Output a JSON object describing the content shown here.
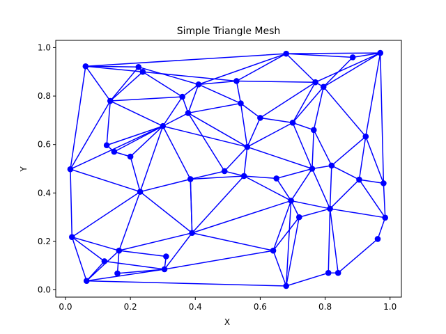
{
  "chart_data": {
    "type": "scatter",
    "title": "Simple Triangle Mesh",
    "xlabel": "X",
    "ylabel": "Y",
    "xlim": [
      -0.03,
      1.035
    ],
    "ylim": [
      -0.03,
      1.03
    ],
    "x_ticks": [
      "0.0",
      "0.2",
      "0.4",
      "0.6",
      "0.8",
      "1.0"
    ],
    "y_ticks": [
      "0.0",
      "0.2",
      "0.4",
      "0.6",
      "0.8",
      "1.0"
    ],
    "grid": false,
    "color": "#0000ff",
    "points": [
      [
        0.062,
        0.923
      ],
      [
        0.225,
        0.92
      ],
      [
        0.238,
        0.9
      ],
      [
        0.68,
        0.975
      ],
      [
        0.885,
        0.96
      ],
      [
        0.97,
        0.978
      ],
      [
        0.138,
        0.78
      ],
      [
        0.36,
        0.797
      ],
      [
        0.41,
        0.848
      ],
      [
        0.527,
        0.862
      ],
      [
        0.77,
        0.857
      ],
      [
        0.795,
        0.838
      ],
      [
        0.54,
        0.77
      ],
      [
        0.378,
        0.73
      ],
      [
        0.6,
        0.71
      ],
      [
        0.7,
        0.69
      ],
      [
        0.765,
        0.66
      ],
      [
        0.925,
        0.633
      ],
      [
        0.3,
        0.676
      ],
      [
        0.127,
        0.597
      ],
      [
        0.15,
        0.57
      ],
      [
        0.2,
        0.55
      ],
      [
        0.56,
        0.59
      ],
      [
        0.015,
        0.498
      ],
      [
        0.49,
        0.49
      ],
      [
        0.76,
        0.5
      ],
      [
        0.82,
        0.513
      ],
      [
        0.55,
        0.47
      ],
      [
        0.385,
        0.457
      ],
      [
        0.65,
        0.46
      ],
      [
        0.905,
        0.455
      ],
      [
        0.98,
        0.44
      ],
      [
        0.23,
        0.405
      ],
      [
        0.695,
        0.368
      ],
      [
        0.815,
        0.335
      ],
      [
        0.72,
        0.3
      ],
      [
        0.985,
        0.298
      ],
      [
        0.02,
        0.218
      ],
      [
        0.39,
        0.235
      ],
      [
        0.962,
        0.21
      ],
      [
        0.165,
        0.162
      ],
      [
        0.64,
        0.162
      ],
      [
        0.31,
        0.138
      ],
      [
        0.12,
        0.118
      ],
      [
        0.305,
        0.085
      ],
      [
        0.16,
        0.068
      ],
      [
        0.065,
        0.037
      ],
      [
        0.84,
        0.07
      ],
      [
        0.81,
        0.07
      ],
      [
        0.68,
        0.016
      ]
    ],
    "edges": [
      [
        0,
        1
      ],
      [
        1,
        2
      ],
      [
        0,
        2
      ],
      [
        0,
        3
      ],
      [
        3,
        4
      ],
      [
        3,
        5
      ],
      [
        4,
        5
      ],
      [
        0,
        6
      ],
      [
        1,
        6
      ],
      [
        2,
        6
      ],
      [
        6,
        7
      ],
      [
        2,
        7
      ],
      [
        1,
        8
      ],
      [
        7,
        8
      ],
      [
        2,
        9
      ],
      [
        8,
        9
      ],
      [
        9,
        3
      ],
      [
        3,
        8
      ],
      [
        3,
        10
      ],
      [
        9,
        10
      ],
      [
        10,
        11
      ],
      [
        11,
        4
      ],
      [
        11,
        5
      ],
      [
        5,
        10
      ],
      [
        8,
        12
      ],
      [
        9,
        12
      ],
      [
        7,
        13
      ],
      [
        12,
        13
      ],
      [
        8,
        13
      ],
      [
        12,
        14
      ],
      [
        10,
        14
      ],
      [
        14,
        15
      ],
      [
        10,
        15
      ],
      [
        11,
        15
      ],
      [
        11,
        16
      ],
      [
        15,
        16
      ],
      [
        11,
        17
      ],
      [
        5,
        17
      ],
      [
        6,
        18
      ],
      [
        7,
        18
      ],
      [
        13,
        18
      ],
      [
        6,
        19
      ],
      [
        18,
        19
      ],
      [
        6,
        23
      ],
      [
        0,
        23
      ],
      [
        19,
        20
      ],
      [
        20,
        18
      ],
      [
        18,
        21
      ],
      [
        20,
        21
      ],
      [
        23,
        18
      ],
      [
        12,
        22
      ],
      [
        14,
        22
      ],
      [
        15,
        22
      ],
      [
        13,
        22
      ],
      [
        18,
        22
      ],
      [
        22,
        24
      ],
      [
        13,
        24
      ],
      [
        24,
        28
      ],
      [
        28,
        18
      ],
      [
        22,
        25
      ],
      [
        15,
        25
      ],
      [
        16,
        25
      ],
      [
        16,
        26
      ],
      [
        26,
        17
      ],
      [
        25,
        26
      ],
      [
        22,
        27
      ],
      [
        24,
        27
      ],
      [
        27,
        29
      ],
      [
        29,
        25
      ],
      [
        27,
        28
      ],
      [
        17,
        30
      ],
      [
        26,
        30
      ],
      [
        30,
        31
      ],
      [
        5,
        31
      ],
      [
        17,
        31
      ],
      [
        23,
        32
      ],
      [
        18,
        32
      ],
      [
        21,
        32
      ],
      [
        32,
        28
      ],
      [
        28,
        38
      ],
      [
        32,
        38
      ],
      [
        32,
        37
      ],
      [
        23,
        37
      ],
      [
        29,
        33
      ],
      [
        25,
        33
      ],
      [
        33,
        34
      ],
      [
        26,
        34
      ],
      [
        34,
        30
      ],
      [
        34,
        25
      ],
      [
        33,
        35
      ],
      [
        35,
        34
      ],
      [
        34,
        36
      ],
      [
        31,
        36
      ],
      [
        30,
        36
      ],
      [
        27,
        33
      ],
      [
        33,
        38
      ],
      [
        28,
        38
      ],
      [
        38,
        27
      ],
      [
        37,
        40
      ],
      [
        37,
        43
      ],
      [
        40,
        38
      ],
      [
        40,
        32
      ],
      [
        40,
        42
      ],
      [
        40,
        45
      ],
      [
        40,
        46
      ],
      [
        43,
        46
      ],
      [
        37,
        46
      ],
      [
        43,
        44
      ],
      [
        42,
        44
      ],
      [
        44,
        38
      ],
      [
        38,
        41
      ],
      [
        41,
        33
      ],
      [
        41,
        35
      ],
      [
        44,
        46
      ],
      [
        45,
        44
      ],
      [
        44,
        41
      ],
      [
        46,
        49
      ],
      [
        41,
        49
      ],
      [
        35,
        49
      ],
      [
        33,
        49
      ],
      [
        49,
        48
      ],
      [
        48,
        34
      ],
      [
        34,
        47
      ],
      [
        47,
        39
      ],
      [
        39,
        36
      ],
      [
        48,
        47
      ]
    ]
  }
}
